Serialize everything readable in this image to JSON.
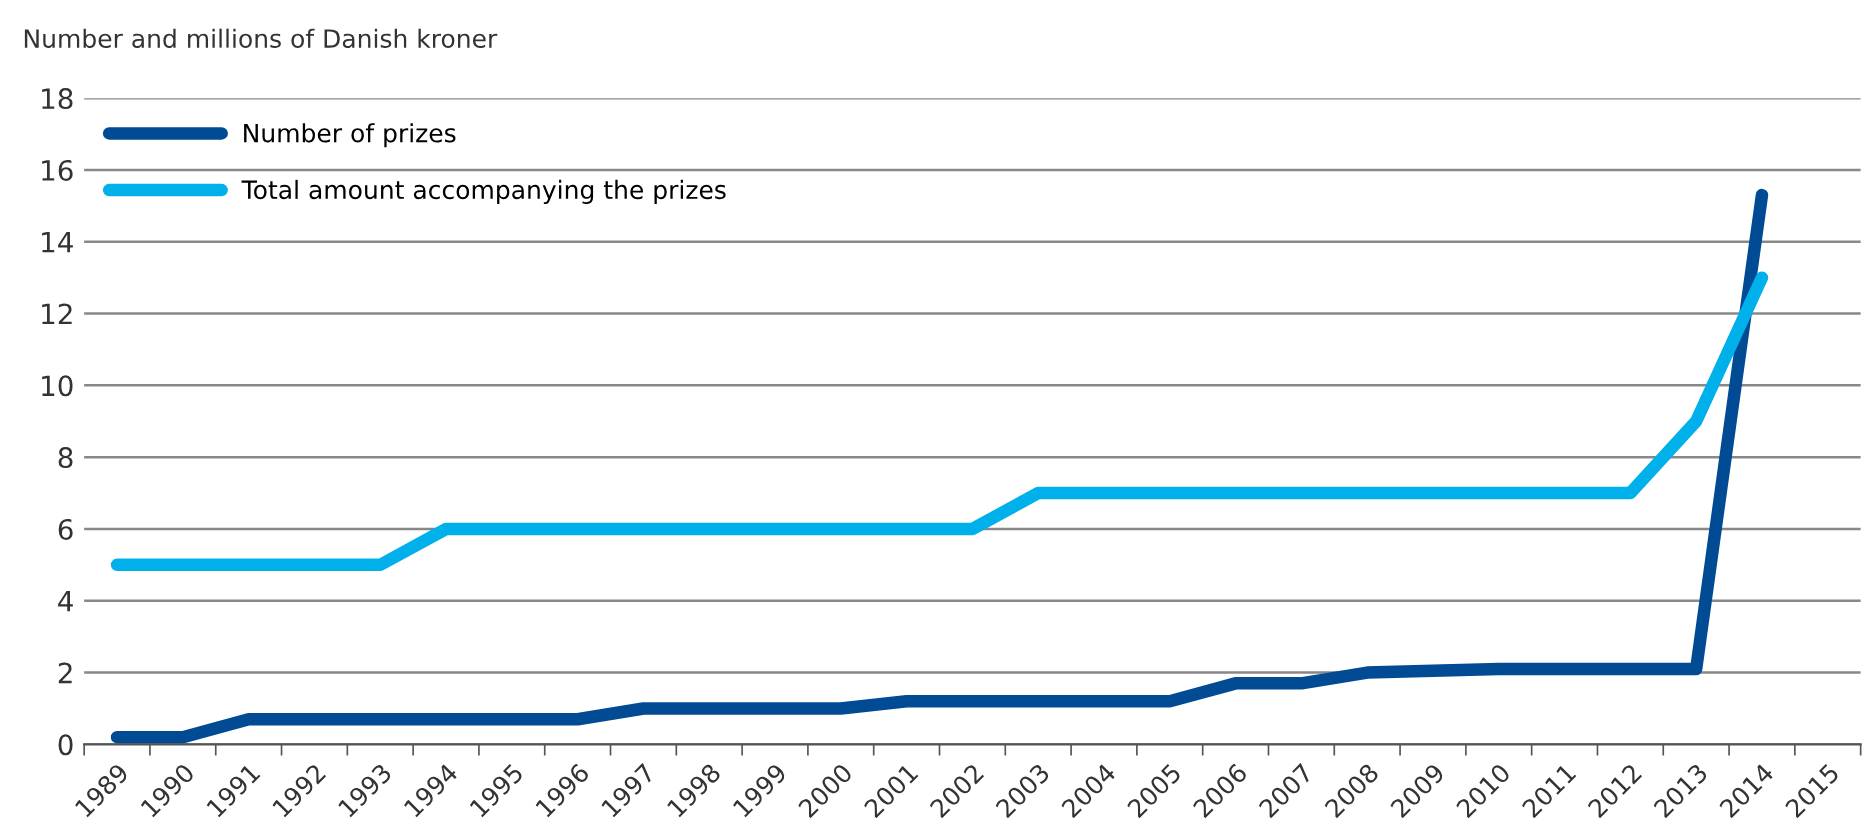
{
  "chart_data": {
    "type": "line",
    "ylabel": "Number and millions of Danish kroner",
    "categories": [
      "1989",
      "1990",
      "1991",
      "1992",
      "1993",
      "1994",
      "1995",
      "1996",
      "1997",
      "1998",
      "1999",
      "2000",
      "2001",
      "2002",
      "2003",
      "2004",
      "2005",
      "2006",
      "2007",
      "2008",
      "2009",
      "2010",
      "2011",
      "2012",
      "2013",
      "2014",
      "2015"
    ],
    "series": [
      {
        "name": "Number of prizes",
        "color": "#004b93",
        "values": [
          0.2,
          0.2,
          0.7,
          0.7,
          0.7,
          0.7,
          0.7,
          0.7,
          1.0,
          1.0,
          1.0,
          1.0,
          1.2,
          1.2,
          1.2,
          1.2,
          1.2,
          1.7,
          1.7,
          2.0,
          2.05,
          2.1,
          2.1,
          2.1,
          2.1,
          15.3,
          null
        ]
      },
      {
        "name": "Total amount accompanying the prizes",
        "color": "#00b0ea",
        "values": [
          5,
          5,
          5,
          5,
          5,
          6,
          6,
          6,
          6,
          6,
          6,
          6,
          6,
          6,
          7,
          7,
          7,
          7,
          7,
          7,
          7,
          7,
          7,
          7,
          9,
          13,
          null
        ]
      }
    ],
    "ylim": [
      0,
      18
    ],
    "yticks": [
      0,
      2,
      4,
      6,
      8,
      10,
      12,
      14,
      16,
      18
    ],
    "grid": "y",
    "legend": "top left",
    "marker": "none",
    "line_style": "solid"
  }
}
